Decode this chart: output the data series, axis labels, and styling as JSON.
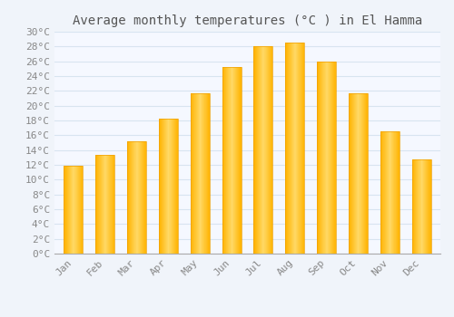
{
  "title": "Average monthly temperatures (°C ) in El Hamma",
  "months": [
    "Jan",
    "Feb",
    "Mar",
    "Apr",
    "May",
    "Jun",
    "Jul",
    "Aug",
    "Sep",
    "Oct",
    "Nov",
    "Dec"
  ],
  "temperatures": [
    11.9,
    13.3,
    15.2,
    18.2,
    21.7,
    25.2,
    28.0,
    28.5,
    26.0,
    21.7,
    16.5,
    12.7
  ],
  "bar_color_main": "#FFB300",
  "bar_color_light": "#FFD966",
  "bar_color_edge": "#F0A000",
  "background_color": "#F0F4FA",
  "plot_bg_color": "#F5F8FF",
  "grid_color": "#D8E4F0",
  "text_color": "#888888",
  "title_color": "#555555",
  "ylim": [
    0,
    30
  ],
  "ytick_step": 2,
  "title_fontsize": 10,
  "tick_fontsize": 8,
  "bar_width": 0.6
}
